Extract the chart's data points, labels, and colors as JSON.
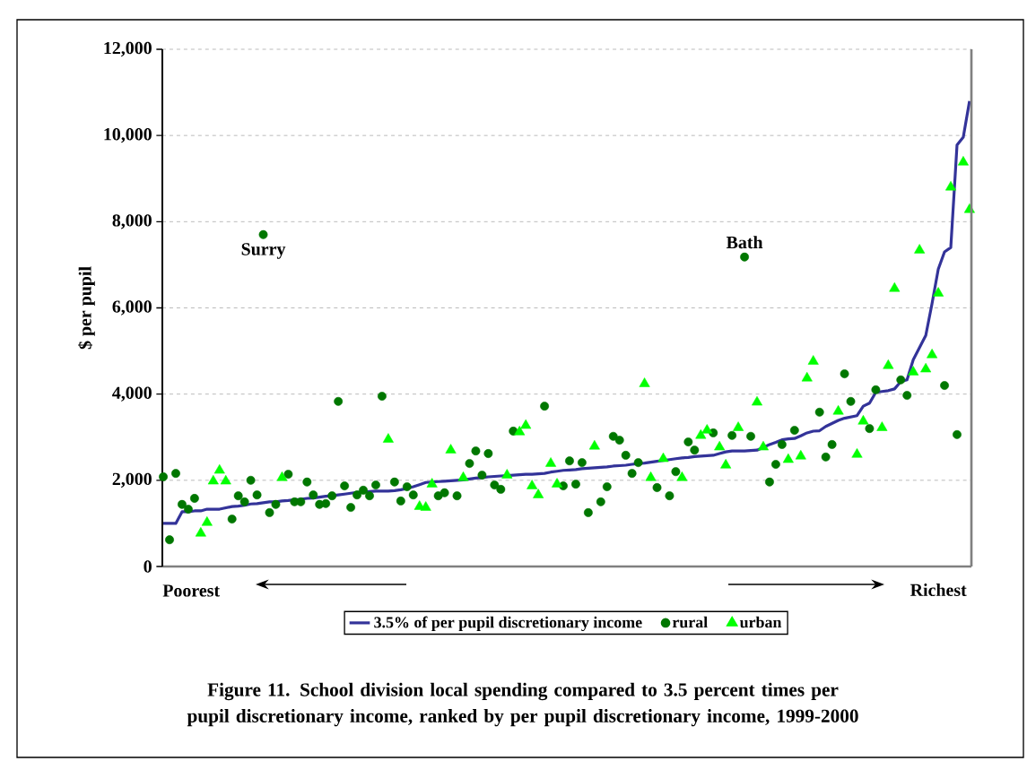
{
  "chart_data": {
    "type": "scatter",
    "title": "Figure 11.  School division local spending compared to 3.5 percent times per pupil discretionary income, ranked by per pupil discretionary income, 1999-2000",
    "ylabel": "$ per pupil",
    "annotations": [
      "Poorest",
      "Richest",
      {
        "text": "Surry",
        "y": 7700
      },
      {
        "text": "Bath",
        "y": 7180
      }
    ],
    "categories": [
      null,
      null,
      null,
      null,
      null,
      null,
      null,
      null,
      null,
      null,
      null,
      null,
      null,
      null,
      null,
      null,
      null,
      null,
      null,
      null,
      null,
      null,
      null,
      null,
      null,
      null,
      null,
      null,
      null,
      null,
      null,
      null,
      null,
      null,
      null,
      null,
      null,
      null,
      null,
      null,
      null,
      null,
      null,
      null,
      null,
      null,
      null,
      null,
      null,
      null,
      null,
      null,
      null,
      null,
      null,
      null,
      null,
      null,
      null,
      null,
      null,
      null,
      null,
      null,
      null,
      null,
      null,
      null,
      null,
      null,
      null,
      null,
      null,
      null,
      null,
      null,
      null,
      null,
      null,
      null,
      null,
      null,
      null,
      null,
      null,
      null,
      null,
      null,
      null,
      null,
      null,
      null,
      null,
      null,
      null,
      null,
      null,
      null,
      null,
      null,
      null,
      null,
      null,
      null,
      null,
      null,
      null,
      null,
      null,
      null,
      null,
      null,
      null,
      null,
      null,
      null,
      null,
      null,
      null,
      null,
      null,
      null,
      null,
      null,
      null,
      null,
      null,
      null,
      null,
      null
    ],
    "series": [
      {
        "name": "3.5% of per pupil discretionary income",
        "type": "line",
        "marker": "none",
        "color": "#333399",
        "values": [
          1000,
          1000,
          1000,
          1270,
          1270,
          1290,
          1290,
          1330,
          1330,
          1330,
          1360,
          1390,
          1400,
          1420,
          1450,
          1460,
          1480,
          1500,
          1500,
          1520,
          1530,
          1550,
          1560,
          1580,
          1590,
          1610,
          1630,
          1640,
          1660,
          1680,
          1700,
          1720,
          1730,
          1740,
          1750,
          1750,
          1750,
          1760,
          1780,
          1810,
          1850,
          1900,
          1950,
          1960,
          1970,
          1980,
          1990,
          2000,
          2010,
          2030,
          2050,
          2060,
          2080,
          2090,
          2100,
          2110,
          2120,
          2130,
          2140,
          2140,
          2150,
          2160,
          2190,
          2210,
          2230,
          2240,
          2250,
          2270,
          2280,
          2290,
          2300,
          2310,
          2330,
          2340,
          2350,
          2370,
          2390,
          2400,
          2420,
          2440,
          2460,
          2480,
          2500,
          2520,
          2530,
          2550,
          2560,
          2570,
          2580,
          2620,
          2660,
          2680,
          2680,
          2680,
          2690,
          2700,
          2760,
          2830,
          2880,
          2940,
          2960,
          2970,
          3030,
          3100,
          3140,
          3150,
          3250,
          3320,
          3390,
          3440,
          3470,
          3500,
          3720,
          3790,
          4040,
          4060,
          4080,
          4120,
          4290,
          4330,
          4800,
          5080,
          5360,
          6100,
          6900,
          7300,
          7400,
          9780,
          9960,
          10800
        ]
      },
      {
        "name": "rural",
        "marker": "circle",
        "color": "#007700",
        "values": [
          2080,
          620,
          2160,
          1440,
          1330,
          1580,
          null,
          null,
          null,
          null,
          null,
          1100,
          1640,
          1500,
          2000,
          1660,
          7700,
          1250,
          1440,
          null,
          2140,
          1500,
          1500,
          1960,
          1660,
          1440,
          1460,
          1640,
          3830,
          1870,
          1370,
          1660,
          1770,
          1640,
          1890,
          3950,
          null,
          1960,
          1520,
          1850,
          1660,
          null,
          null,
          null,
          1640,
          1710,
          null,
          1640,
          null,
          2390,
          2680,
          2120,
          2620,
          1890,
          1790,
          null,
          3140,
          null,
          null,
          null,
          null,
          3720,
          null,
          null,
          1870,
          2450,
          1910,
          2410,
          1250,
          null,
          1500,
          1850,
          3020,
          2930,
          2580,
          2160,
          2410,
          null,
          null,
          1830,
          null,
          1640,
          2200,
          null,
          2890,
          2700,
          null,
          null,
          3100,
          null,
          null,
          3040,
          null,
          7180,
          3020,
          null,
          null,
          1960,
          2370,
          2830,
          null,
          3160,
          null,
          null,
          null,
          3580,
          2540,
          2830,
          null,
          4470,
          3830,
          null,
          null,
          3200,
          4100,
          null,
          null,
          null,
          4330,
          3970,
          null,
          null,
          null,
          null,
          null,
          4200,
          null,
          3060,
          null,
          null
        ]
      },
      {
        "name": "urban",
        "marker": "triangle",
        "color": "#00ff00",
        "values": [
          null,
          null,
          null,
          null,
          null,
          null,
          770,
          1020,
          1980,
          2230,
          1980,
          null,
          null,
          null,
          null,
          null,
          null,
          null,
          null,
          2060,
          null,
          null,
          null,
          null,
          null,
          null,
          null,
          null,
          null,
          null,
          null,
          null,
          null,
          null,
          null,
          null,
          2950,
          null,
          null,
          null,
          null,
          1390,
          1370,
          1910,
          null,
          null,
          2700,
          null,
          2060,
          null,
          null,
          null,
          null,
          null,
          null,
          2120,
          null,
          3120,
          3270,
          1870,
          1660,
          null,
          2390,
          1910,
          null,
          null,
          null,
          null,
          null,
          2790,
          null,
          null,
          null,
          null,
          null,
          null,
          null,
          4240,
          2060,
          null,
          2500,
          null,
          null,
          2060,
          null,
          null,
          3040,
          3160,
          null,
          2770,
          2350,
          null,
          3220,
          null,
          null,
          3810,
          2770,
          null,
          null,
          null,
          2480,
          null,
          2560,
          4370,
          4760,
          null,
          null,
          null,
          3600,
          null,
          null,
          2600,
          3370,
          null,
          null,
          3220,
          4660,
          6450,
          null,
          null,
          4510,
          7340,
          4580,
          4910,
          6340,
          null,
          8800,
          null,
          9380,
          8280
        ]
      }
    ],
    "ylim": [
      0,
      12000
    ],
    "yticks": [
      0,
      {
        "value": 2000,
        "label": "2,000"
      },
      {
        "value": 4000,
        "label": "4,000"
      },
      {
        "value": 6000,
        "label": "6,000"
      },
      {
        "value": 8000,
        "label": "8,000"
      },
      {
        "value": 10000,
        "label": "10,000"
      },
      {
        "value": 12000,
        "label": "12,000"
      }
    ],
    "grid": "y",
    "legend": "bottom",
    "tick_labels": "y"
  }
}
